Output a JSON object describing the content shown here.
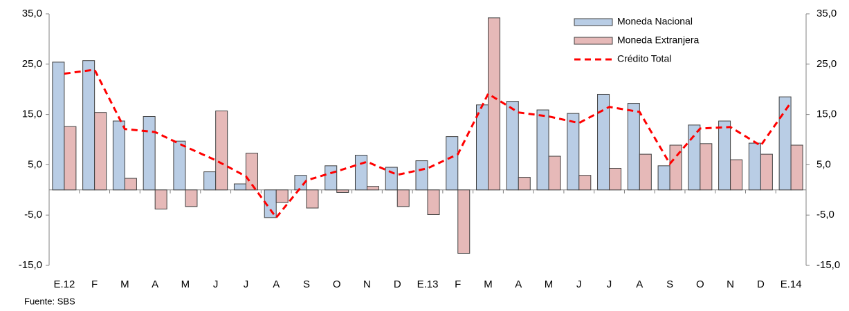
{
  "chart_data": {
    "type": "bar",
    "categories": [
      "E.12",
      "F",
      "M",
      "A",
      "M",
      "J",
      "J",
      "A",
      "S",
      "O",
      "N",
      "D",
      "E.13",
      "F",
      "M",
      "A",
      "M",
      "J",
      "J",
      "A",
      "S",
      "O",
      "N",
      "D",
      "E.14"
    ],
    "series": [
      {
        "name": "Moneda Nacional",
        "type": "bar",
        "color": "#b9cde5",
        "values": [
          25.4,
          25.7,
          13.7,
          14.6,
          9.7,
          3.6,
          1.2,
          -5.5,
          2.9,
          4.8,
          6.9,
          4.5,
          5.8,
          10.6,
          16.9,
          17.6,
          15.9,
          15.2,
          19.0,
          17.2,
          4.8,
          12.9,
          13.7,
          9.3,
          18.5
        ]
      },
      {
        "name": "Moneda Extranjera",
        "type": "bar",
        "color": "#e6b9b8",
        "values": [
          12.6,
          15.4,
          2.3,
          -3.8,
          -3.3,
          15.7,
          7.3,
          -2.5,
          -3.6,
          -0.5,
          0.7,
          -3.3,
          -4.9,
          -12.6,
          34.2,
          2.5,
          6.7,
          2.9,
          4.3,
          7.1,
          8.9,
          9.2,
          6.0,
          7.1,
          8.9
        ]
      },
      {
        "name": "Crédito Total",
        "type": "line",
        "color": "#ff0000",
        "values": [
          23.1,
          23.9,
          12.1,
          11.5,
          8.6,
          5.9,
          2.7,
          -5.5,
          1.9,
          3.7,
          5.6,
          3.0,
          4.3,
          7.1,
          19.1,
          15.4,
          14.6,
          13.3,
          16.5,
          15.5,
          5.2,
          12.2,
          12.5,
          8.8,
          17.4
        ]
      }
    ],
    "ylim": [
      -15,
      35
    ],
    "yticks": [
      {
        "value": -15,
        "label": "-15,0"
      },
      {
        "value": -5,
        "label": "-5,0"
      },
      {
        "value": 5,
        "label": "5,0"
      },
      {
        "value": 15,
        "label": "15,0"
      },
      {
        "value": 25,
        "label": "25,0"
      },
      {
        "value": 35,
        "label": "35,0"
      }
    ],
    "y2lim": [
      -15,
      35
    ],
    "y2ticks": [
      {
        "value": -15,
        "label": "-15,0"
      },
      {
        "value": -5,
        "label": "-5,0"
      },
      {
        "value": 5,
        "label": "5,0"
      },
      {
        "value": 15,
        "label": "15,0"
      },
      {
        "value": 25,
        "label": "25,0"
      },
      {
        "value": 35,
        "label": "35,0"
      }
    ],
    "legend": "top-right",
    "note": "Fuente: SBS"
  }
}
